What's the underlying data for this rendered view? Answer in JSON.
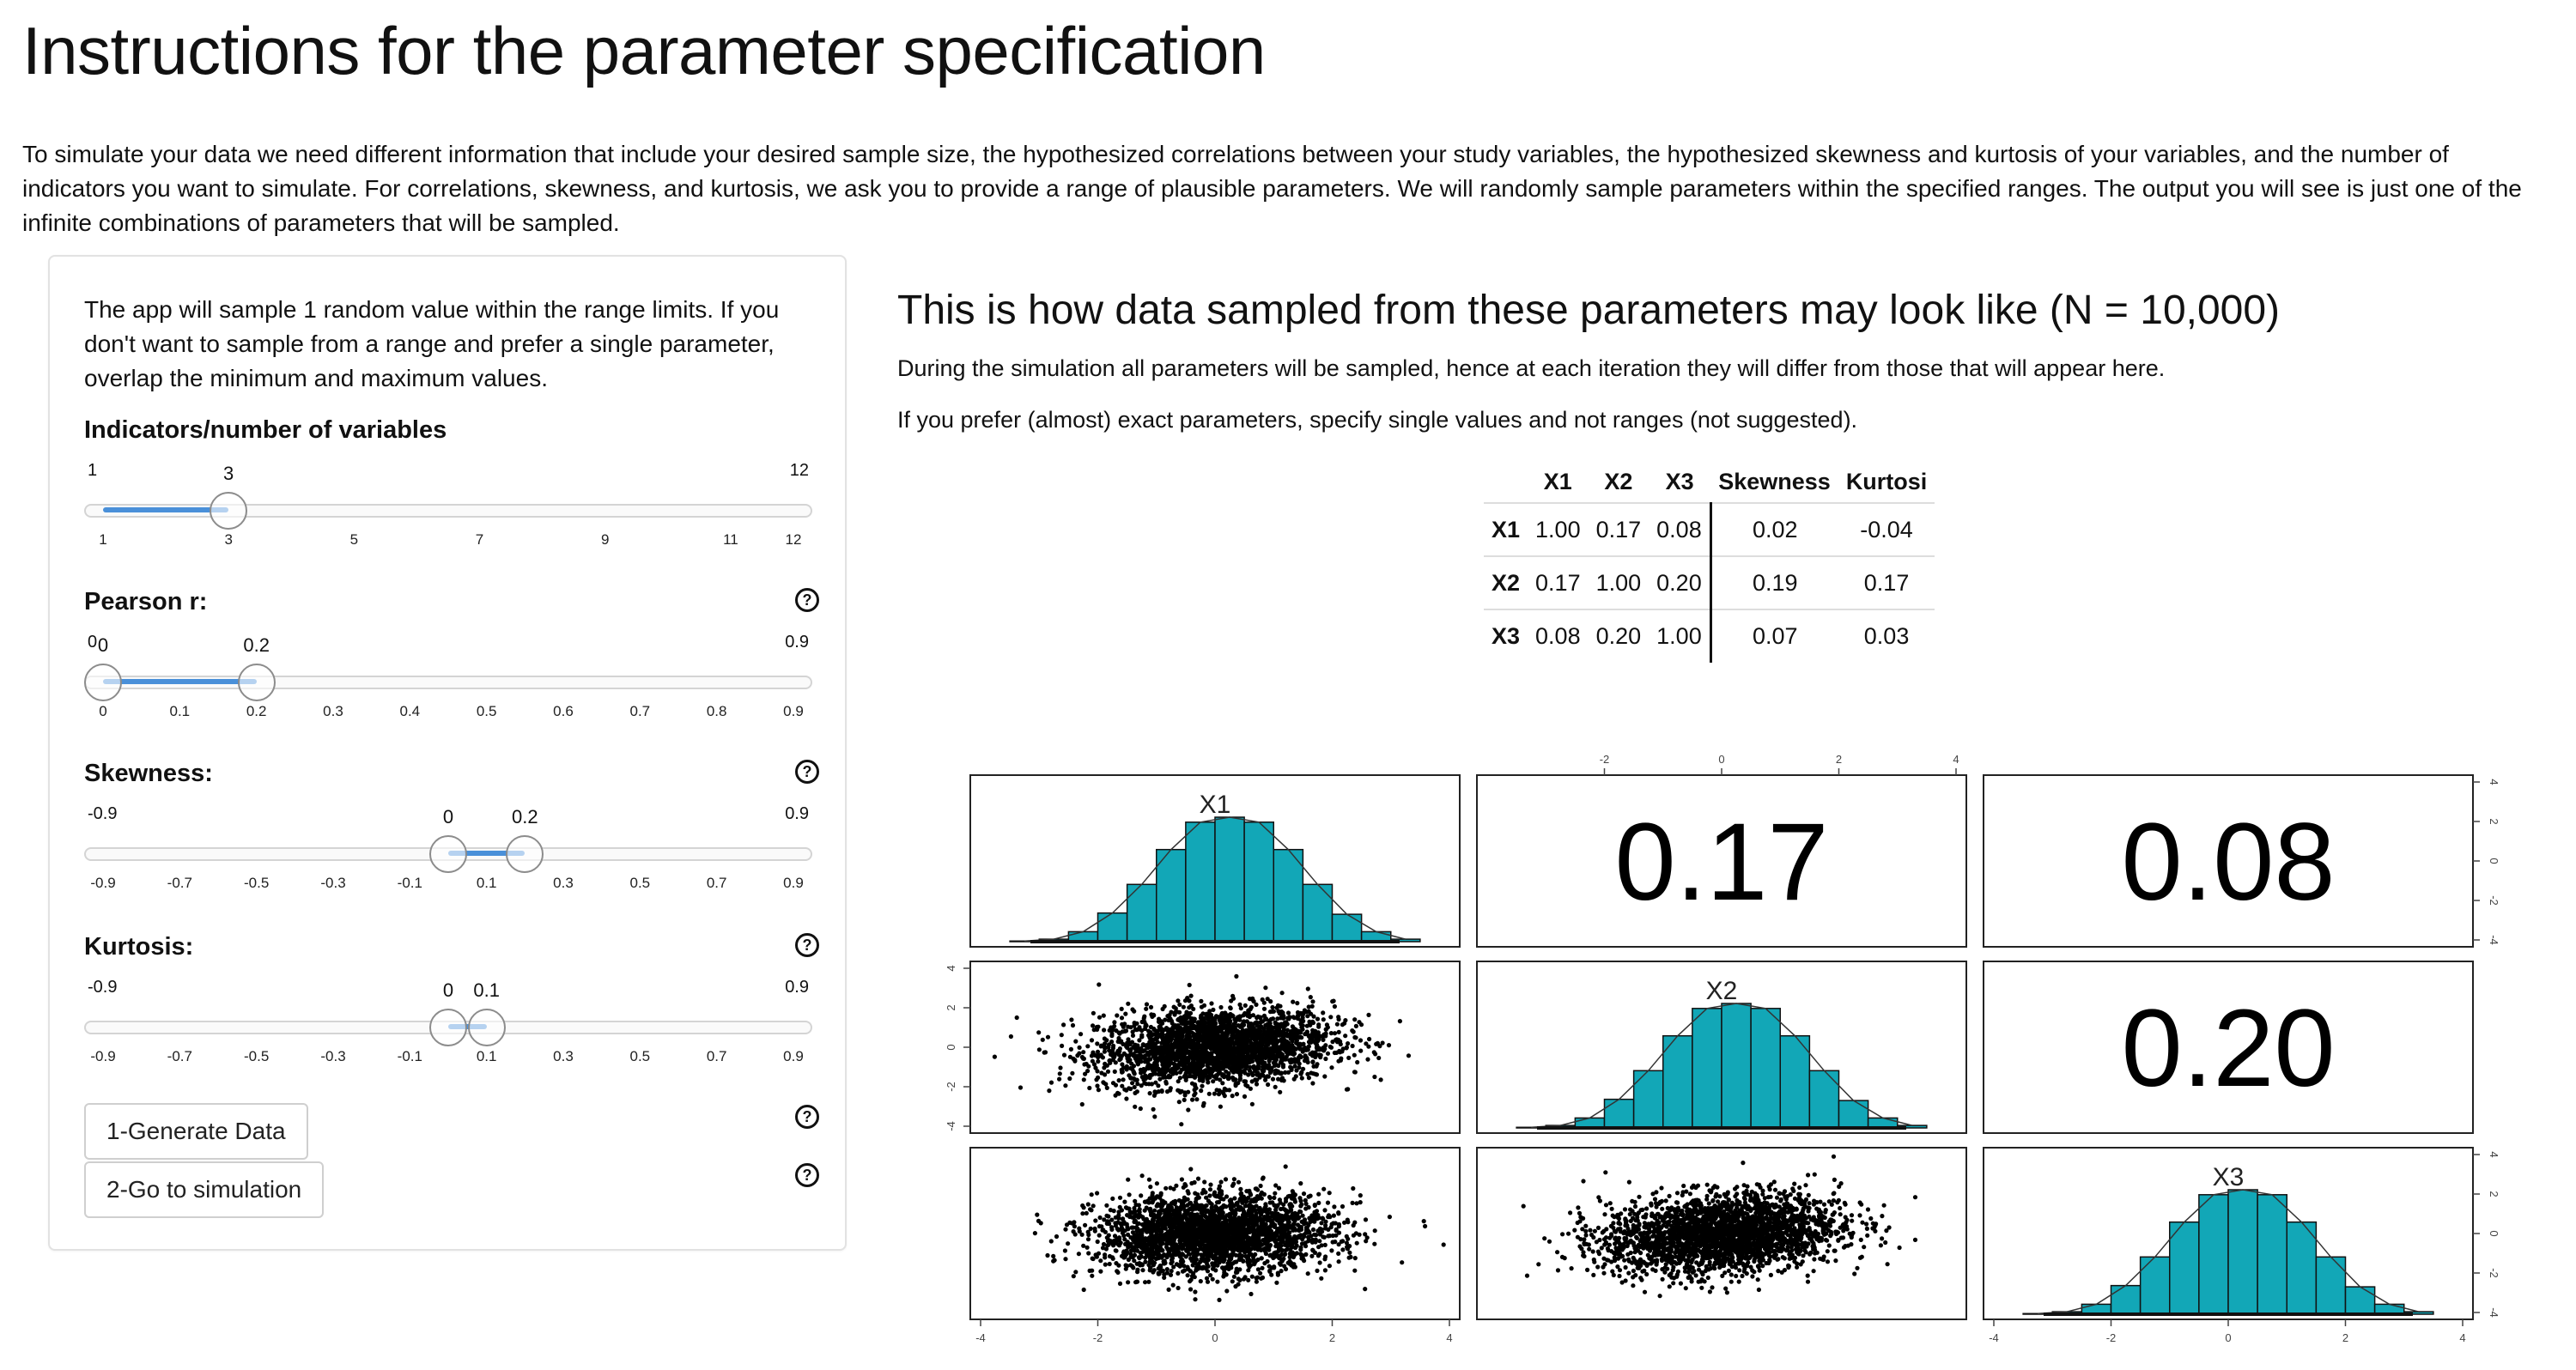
{
  "page": {
    "title": "Instructions for the parameter specification",
    "intro": "To simulate your data we need different information that include your desired sample size, the hypothesized correlations between your study variables, the hypothesized skewness and kurtosis of your variables, and the number of indicators you want to simulate. For correlations, skewness, and kurtosis, we ask you to provide a range of plausible parameters. We will randomly sample parameters within the specified ranges. The output you will see is just one of the infinite combinations of parameters that will be sampled."
  },
  "sidebar": {
    "help_text": "The app will sample 1 random value within the range limits. If you don't want to sample from a range and prefer a single parameter, overlap the minimum and maximum values.",
    "indicators": {
      "label": "Indicators/number of variables",
      "min": 1,
      "max": 12,
      "value": 3,
      "min_label": "1",
      "max_label": "12",
      "value_label": "3",
      "ticks": [
        "1",
        "3",
        "5",
        "7",
        "9",
        "11",
        "12"
      ],
      "tick_values": [
        1,
        3,
        5,
        7,
        9,
        11,
        12
      ]
    },
    "pearson": {
      "label": "Pearson r:",
      "min": 0,
      "max": 0.9,
      "low": 0,
      "high": 0.2,
      "min_label": "0",
      "max_label": "0.9",
      "low_label": "0",
      "high_label": "0.2",
      "ticks": [
        "0",
        "0.1",
        "0.2",
        "0.3",
        "0.4",
        "0.5",
        "0.6",
        "0.7",
        "0.8",
        "0.9"
      ],
      "tick_values": [
        0,
        0.1,
        0.2,
        0.3,
        0.4,
        0.5,
        0.6,
        0.7,
        0.8,
        0.9
      ]
    },
    "skewness": {
      "label": "Skewness:",
      "min": -0.9,
      "max": 0.9,
      "low": 0,
      "high": 0.2,
      "min_label": "-0.9",
      "max_label": "0.9",
      "low_label": "0",
      "high_label": "0.2",
      "ticks": [
        "-0.9",
        "-0.7",
        "-0.5",
        "-0.3",
        "-0.1",
        "0.1",
        "0.3",
        "0.5",
        "0.7",
        "0.9"
      ],
      "tick_values": [
        -0.9,
        -0.7,
        -0.5,
        -0.3,
        -0.1,
        0.1,
        0.3,
        0.5,
        0.7,
        0.9
      ]
    },
    "kurtosis": {
      "label": "Kurtosis:",
      "min": -0.9,
      "max": 0.9,
      "low": 0,
      "high": 0.1,
      "min_label": "-0.9",
      "max_label": "0.9",
      "low_label": "0",
      "high_label": "0.1",
      "ticks": [
        "-0.9",
        "-0.7",
        "-0.5",
        "-0.3",
        "-0.1",
        "0.1",
        "0.3",
        "0.5",
        "0.7",
        "0.9"
      ],
      "tick_values": [
        -0.9,
        -0.7,
        -0.5,
        -0.3,
        -0.1,
        0.1,
        0.3,
        0.5,
        0.7,
        0.9
      ]
    },
    "help_icon": "?",
    "generate_button": "1-Generate Data",
    "simulation_button": "2-Go to simulation"
  },
  "main": {
    "title": "This is how data sampled from these parameters may look like (N = 10,000)",
    "note1": "During the simulation all parameters will be sampled, hence at each iteration they will differ from those that will appear here.",
    "note2": "If you prefer (almost) exact parameters, specify single values and not ranges (not suggested).",
    "table": {
      "headers": [
        "",
        "X1",
        "X2",
        "X3",
        "Skewness",
        "Kurtosi"
      ],
      "rows": [
        [
          "X1",
          "1.00",
          "0.17",
          "0.08",
          "0.02",
          "-0.04"
        ],
        [
          "X2",
          "0.17",
          "1.00",
          "0.20",
          "0.19",
          "0.17"
        ],
        [
          "X3",
          "0.08",
          "0.20",
          "1.00",
          "0.07",
          "0.03"
        ]
      ]
    }
  },
  "chart_data": {
    "type": "scatter",
    "variables": [
      "X1",
      "X2",
      "X3"
    ],
    "n": 10000,
    "axis_range": [
      -4,
      4
    ],
    "axis_ticks": [
      "-4",
      "-2",
      "0",
      "2",
      "4"
    ],
    "top_axis_ticks": [
      "-2",
      "0",
      "2",
      "4"
    ],
    "correlations": {
      "X1_X2": "0.17",
      "X1_X3": "0.08",
      "X2_X3": "0.20"
    },
    "histogram_bins": [
      -3.5,
      -3,
      -2.5,
      -2,
      -1.5,
      -1,
      -0.5,
      0,
      0.5,
      1,
      1.5,
      2,
      2.5,
      3
    ],
    "histogram_heights": [
      0.005,
      0.02,
      0.08,
      0.23,
      0.46,
      0.74,
      0.96,
      1.0,
      0.96,
      0.74,
      0.46,
      0.22,
      0.08,
      0.02
    ],
    "colors": {
      "histogram": "#12a7b7",
      "points": "#000000"
    }
  }
}
